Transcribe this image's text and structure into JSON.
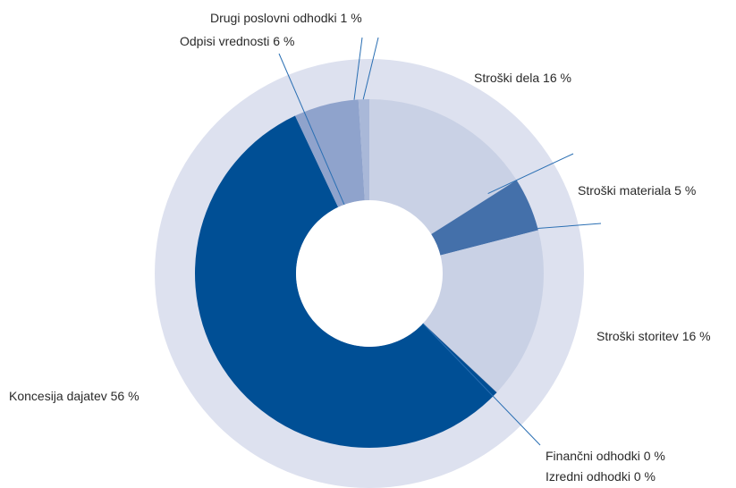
{
  "chart_data": {
    "type": "pie",
    "style": "donut",
    "title": "",
    "slices": [
      {
        "label": "Stroški dela 16 %",
        "value": 16,
        "color": "#c9d1e5"
      },
      {
        "label": "Stroški materiala 5 %",
        "value": 5,
        "color": "#4470aa"
      },
      {
        "label": "Stroški storitev 16 %",
        "value": 16,
        "color": "#c9d1e5"
      },
      {
        "label": "Finančni odhodki 0 %",
        "value": 0,
        "color": "#2a5f99"
      },
      {
        "label": "Izredni odhodki 0 %",
        "value": 0,
        "color": "#2a5f99"
      },
      {
        "label": "Koncesija dajatev 56 %",
        "value": 56,
        "color": "#004f95"
      },
      {
        "label": "Odpisi vrednosti 6 %",
        "value": 6,
        "color": "#8fa3cc"
      },
      {
        "label": "Drugi poslovni odhodki 1 %",
        "value": 1,
        "color": "#a9b8d8"
      }
    ],
    "background_ring_color": "#dde1ef",
    "leader_line_color": "#2a6fb3",
    "legend": "none"
  }
}
